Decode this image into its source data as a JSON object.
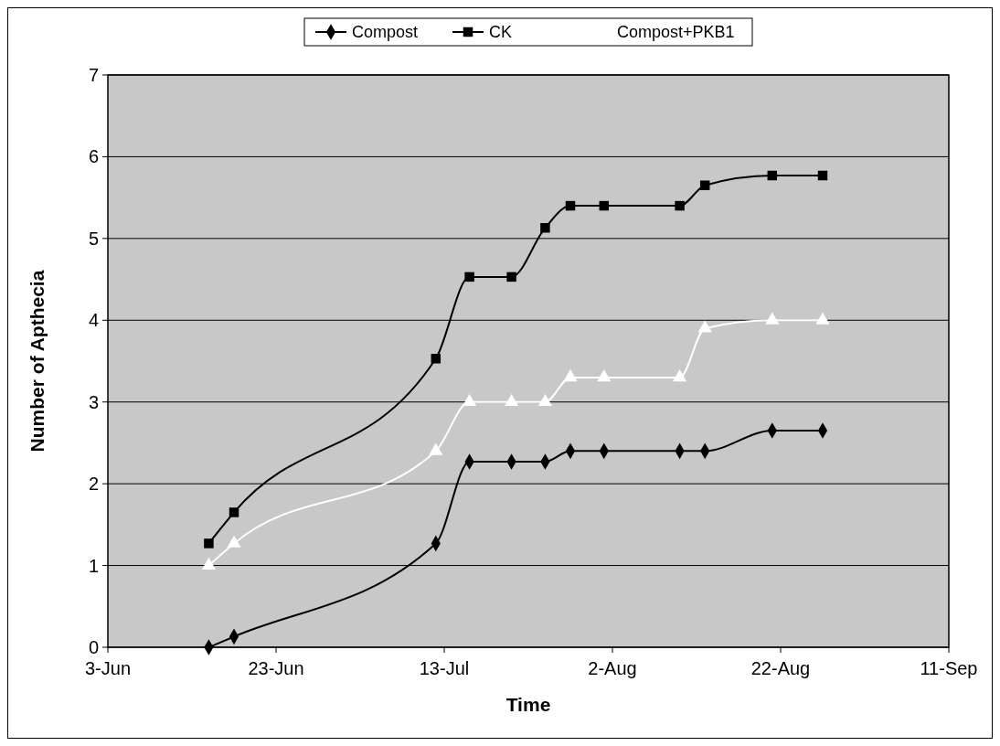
{
  "chart_data": {
    "type": "line",
    "xlabel": "Time",
    "ylabel": "Number of Apthecia",
    "x": [
      "--06-15",
      "--06-18",
      "--07-12",
      "--07-16",
      "--07-21",
      "--07-25",
      "--07-28",
      "--08-01",
      "--08-10",
      "--08-13",
      "--08-21",
      "--08-27"
    ],
    "series": [
      {
        "name": "Compost",
        "color": "#000000",
        "marker": "diamond",
        "values": [
          0,
          0.13,
          1.27,
          2.27,
          2.27,
          2.27,
          2.4,
          2.4,
          2.4,
          2.4,
          2.65,
          2.65
        ]
      },
      {
        "name": "CK",
        "color": "#000000",
        "marker": "square",
        "values": [
          1.27,
          1.65,
          3.53,
          4.53,
          4.53,
          5.13,
          5.4,
          5.4,
          5.4,
          5.65,
          5.77,
          5.77
        ]
      },
      {
        "name": "Compost+PKB1",
        "color": "#ffffff",
        "marker": "triangle",
        "values": [
          1.0,
          1.27,
          2.4,
          3.0,
          3.0,
          3.0,
          3.3,
          3.3,
          3.3,
          3.9,
          4.0,
          4.0
        ]
      }
    ],
    "xlim": [
      "--06-03",
      "--09-11"
    ],
    "xticks": [
      {
        "value": "--06-03",
        "label": "3-Jun"
      },
      {
        "value": "--06-23",
        "label": "23-Jun"
      },
      {
        "value": "--07-13",
        "label": "13-Jul"
      },
      {
        "value": "--08-02",
        "label": "2-Aug"
      },
      {
        "value": "--08-22",
        "label": "22-Aug"
      },
      {
        "value": "--09-11",
        "label": "11-Sep"
      }
    ],
    "ylim": [
      0,
      7
    ],
    "yticks": [
      0,
      1,
      2,
      3,
      4,
      5,
      6,
      7
    ],
    "grid": "y",
    "legend": "top"
  }
}
